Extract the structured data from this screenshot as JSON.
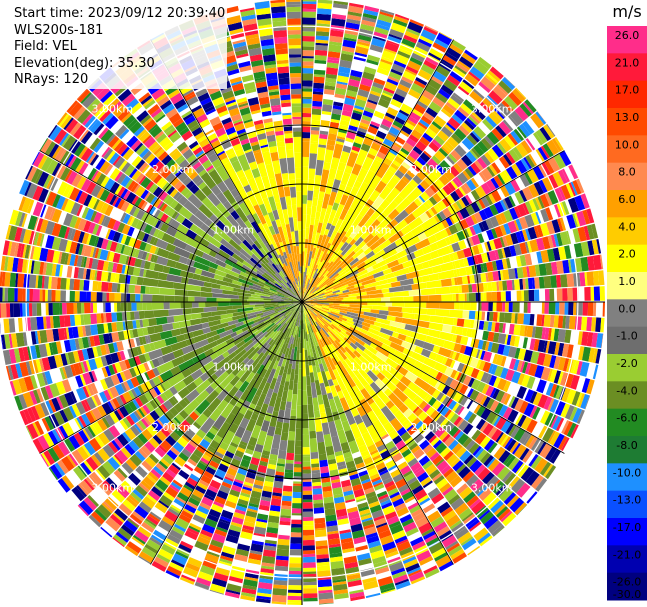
{
  "header": {
    "start_time": "Start time: 2023/09/12 20:39:40",
    "instrument": "WLS200s-181",
    "field": "Field: VEL",
    "elevation": "Elevation(deg): 35.30",
    "nrays": "NRays: 120"
  },
  "colorbar": {
    "unit": "m/s",
    "ticks": [
      "26.0",
      "21.0",
      "17.0",
      "13.0",
      "10.0",
      "8.0",
      "6.0",
      "4.0",
      "2.0",
      "1.0",
      "0.0",
      "-1.0",
      "-2.0",
      "-4.0",
      "-6.0",
      "-8.0",
      "-10.0",
      "-13.0",
      "-17.0",
      "-21.0",
      "-26.0",
      "-30.0"
    ],
    "colors": [
      "#ff2d8a",
      "#ff1a3a",
      "#ff2800",
      "#ff4a00",
      "#ff6a20",
      "#ff8a50",
      "#ffa000",
      "#ffcc00",
      "#ffff00",
      "#ffff80",
      "#808080",
      "#6e6e6e",
      "#9acd32",
      "#6b8e23",
      "#228b22",
      "#1e7c33",
      "#1e90ff",
      "#0a50ff",
      "#0000ff",
      "#0000b0",
      "#000080",
      "#00005a"
    ]
  },
  "chart_data": {
    "type": "ppi",
    "field": "VEL",
    "n_rays": 120,
    "range_rings_km": [
      1.0,
      2.0,
      3.0
    ],
    "ring_labels": [
      "1.00km",
      "2.00km",
      "3.00km"
    ],
    "spoke_labels": [
      "1.00km",
      "2.00km",
      "3.00km"
    ],
    "max_range_km": 3.0,
    "palette": "velocity colormap -30 to 26 m/s"
  }
}
